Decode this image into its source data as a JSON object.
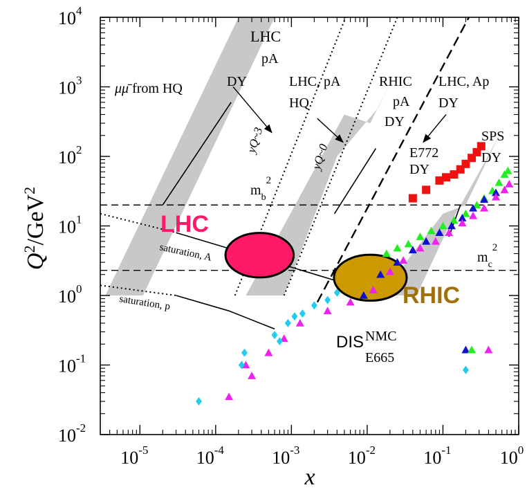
{
  "chart_data": {
    "type": "scatter",
    "title": "",
    "xlabel": "x",
    "ylabel_main": "Q",
    "ylabel_sup": "2",
    "ylabel_unit": "/GeV",
    "ylabel_unit_sup": "2",
    "x_scale": "log",
    "y_scale": "log",
    "xlim": [
      3e-06,
      1
    ],
    "ylim": [
      0.01,
      10000
    ],
    "grid": false,
    "x_ticks": [
      {
        "base": "10",
        "exp": "-5",
        "value": 1e-05
      },
      {
        "base": "10",
        "exp": "-4",
        "value": 0.0001
      },
      {
        "base": "10",
        "exp": "-3",
        "value": 0.001
      },
      {
        "base": "10",
        "exp": "-2",
        "value": 0.01
      },
      {
        "base": "10",
        "exp": "-1",
        "value": 0.1
      },
      {
        "base": "10",
        "exp": "0",
        "value": 1
      }
    ],
    "y_ticks": [
      {
        "base": "10",
        "exp": "-2",
        "value": 0.01
      },
      {
        "base": "10",
        "exp": "-1",
        "value": 0.1
      },
      {
        "base": "10",
        "exp": "0",
        "value": 1
      },
      {
        "base": "10",
        "exp": "1",
        "value": 10
      },
      {
        "base": "10",
        "exp": "2",
        "value": 100
      },
      {
        "base": "10",
        "exp": "3",
        "value": 1000
      },
      {
        "base": "10",
        "exp": "4",
        "value": 10000
      }
    ],
    "bands": [
      {
        "corners": [
          [
            3.5e-06,
            1
          ],
          [
            1.1e-05,
            1
          ],
          [
            0.0006,
            10000
          ],
          [
            0.0002,
            10000
          ]
        ],
        "color": "#c8c8c8"
      },
      {
        "corners": [
          [
            0.00025,
            1
          ],
          [
            0.0008,
            1
          ],
          [
            0.004,
            100
          ],
          [
            0.014,
            500
          ],
          [
            0.022,
            1400
          ],
          [
            0.011,
            300
          ],
          [
            0.005,
            400
          ]
        ],
        "color": "#c8c8c8"
      },
      {
        "corners": [
          [
            0.015,
            1
          ],
          [
            0.045,
            1
          ],
          [
            0.12,
            10
          ],
          [
            0.35,
            80
          ],
          [
            0.55,
            200
          ],
          [
            0.2,
            20
          ],
          [
            0.1,
            15
          ]
        ],
        "color": "#c8c8c8"
      }
    ],
    "lines": [
      {
        "name": "yq-3",
        "style": "dotted",
        "points": [
          [
            0.00018,
            1
          ],
          [
            0.0052,
            10000
          ]
        ]
      },
      {
        "name": "yq-0",
        "style": "dotted",
        "points": [
          [
            0.0008,
            1
          ],
          [
            0.025,
            10000
          ]
        ]
      },
      {
        "name": "kinematic-limit",
        "style": "dashed",
        "points": [
          [
            0.0022,
            0.8
          ],
          [
            0.22,
            10000
          ]
        ]
      },
      {
        "name": "mb2",
        "style": "dashed",
        "points": [
          [
            3e-06,
            20
          ],
          [
            1,
            20
          ]
        ]
      },
      {
        "name": "mc2",
        "style": "dashed",
        "points": [
          [
            3e-06,
            2.3
          ],
          [
            1,
            2.3
          ]
        ]
      },
      {
        "name": "saturation-A-dotted",
        "style": "dotted",
        "points": [
          [
            3e-06,
            15
          ],
          [
            3e-05,
            8
          ]
        ]
      },
      {
        "name": "saturation-A",
        "style": "solid",
        "points": [
          [
            3e-05,
            8
          ],
          [
            0.0005,
            3.2
          ],
          [
            0.005,
            1.5
          ]
        ]
      },
      {
        "name": "saturation-p-dotted",
        "style": "dotted",
        "points": [
          [
            3e-06,
            1.4
          ],
          [
            3e-05,
            1
          ]
        ]
      },
      {
        "name": "saturation-p",
        "style": "solid",
        "points": [
          [
            3e-05,
            1
          ],
          [
            0.00015,
            0.6
          ],
          [
            0.0006,
            0.33
          ]
        ]
      },
      {
        "name": "muon-pair-hq",
        "style": "solid",
        "points": [
          [
            2e-05,
            20
          ],
          [
            0.00016,
            600
          ]
        ]
      },
      {
        "name": "rhic-dy",
        "style": "solid",
        "points": [
          [
            0.0037,
            15
          ],
          [
            0.013,
            130
          ]
        ]
      },
      {
        "name": "sps-dy",
        "style": "solid",
        "points": [
          [
            0.12,
            7
          ],
          [
            0.17,
            20
          ]
        ]
      }
    ],
    "arrows": [
      {
        "from": [
          0.00017,
          1000
        ],
        "to": [
          0.00055,
          220
        ]
      },
      {
        "from": [
          0.0022,
          350
        ],
        "to": [
          0.0048,
          160
        ]
      },
      {
        "from": [
          0.11,
          400
        ],
        "to": [
          0.055,
          160
        ]
      }
    ],
    "ellipses": [
      {
        "center": [
          0.00038,
          3.8
        ],
        "rx_decades": 0.45,
        "ry_decades": 0.32,
        "color": "#ff1a66"
      },
      {
        "center": [
          0.011,
          1.8
        ],
        "rx_decades": 0.48,
        "ry_decades": 0.33,
        "color": "#cc9900"
      }
    ],
    "series": [
      {
        "name": "E772 DY",
        "marker": "square",
        "color": "#ee1111",
        "points": [
          [
            0.04,
            25
          ],
          [
            0.06,
            33
          ],
          [
            0.09,
            45
          ],
          [
            0.11,
            50
          ],
          [
            0.14,
            55
          ],
          [
            0.17,
            65
          ],
          [
            0.2,
            78
          ],
          [
            0.24,
            95
          ],
          [
            0.28,
            115
          ],
          [
            0.32,
            140
          ]
        ]
      },
      {
        "name": "NMC",
        "marker": "triangle",
        "color": "#22ee22",
        "points": [
          [
            0.018,
            4
          ],
          [
            0.025,
            4.8
          ],
          [
            0.035,
            5.5
          ],
          [
            0.05,
            7
          ],
          [
            0.07,
            8.5
          ],
          [
            0.1,
            10
          ],
          [
            0.14,
            12
          ],
          [
            0.2,
            15
          ],
          [
            0.28,
            20
          ],
          [
            0.35,
            25
          ],
          [
            0.45,
            32
          ],
          [
            0.55,
            42
          ],
          [
            0.65,
            55
          ],
          [
            0.72,
            62
          ]
        ]
      },
      {
        "name": "NMC",
        "marker": "triangle",
        "color": "#1111cc",
        "points": [
          [
            0.009,
            1
          ],
          [
            0.015,
            2
          ],
          [
            0.025,
            3
          ],
          [
            0.04,
            4.5
          ],
          [
            0.06,
            6
          ],
          [
            0.09,
            8
          ],
          [
            0.13,
            10
          ],
          [
            0.18,
            13
          ],
          [
            0.25,
            18
          ],
          [
            0.35,
            24
          ],
          [
            0.5,
            30
          ]
        ]
      },
      {
        "name": "E665 / NMC",
        "marker": "triangle",
        "color": "#ee22ee",
        "points": [
          [
            0.00015,
            0.035
          ],
          [
            0.00025,
            0.1
          ],
          [
            0.0003,
            0.07
          ],
          [
            0.0005,
            0.15
          ],
          [
            0.0008,
            0.24
          ],
          [
            0.0013,
            0.4
          ],
          [
            0.003,
            0.6
          ],
          [
            0.006,
            0.8
          ],
          [
            0.012,
            1.2
          ],
          [
            0.02,
            2.2
          ],
          [
            0.03,
            3.2
          ],
          [
            0.05,
            4.8
          ],
          [
            0.08,
            6
          ],
          [
            0.12,
            8
          ],
          [
            0.18,
            11
          ],
          [
            0.25,
            14
          ],
          [
            0.35,
            18
          ],
          [
            0.5,
            26
          ],
          [
            0.65,
            33
          ],
          [
            0.75,
            40
          ]
        ]
      },
      {
        "name": "E665",
        "marker": "diamond",
        "color": "#22ccee",
        "points": [
          [
            6e-05,
            0.03
          ],
          [
            0.00022,
            0.1
          ],
          [
            0.00024,
            0.15
          ],
          [
            0.0006,
            0.27
          ],
          [
            0.0007,
            0.22
          ],
          [
            0.0009,
            0.4
          ],
          [
            0.0011,
            0.5
          ],
          [
            0.0014,
            0.55
          ],
          [
            0.002,
            0.72
          ],
          [
            0.003,
            0.86
          ],
          [
            0.004,
            1.1
          ]
        ]
      }
    ],
    "legend_markers": [
      {
        "series": 2,
        "point": [
          0.2,
          0.165
        ]
      },
      {
        "series": 1,
        "point": [
          0.24,
          0.165
        ]
      },
      {
        "series": 3,
        "point": [
          0.4,
          0.165
        ]
      },
      {
        "series": 4,
        "point": [
          0.2,
          0.085
        ]
      }
    ],
    "annotations": {
      "lhc_pa_dy_1": "LHC",
      "lhc_pa_dy_2": "pA",
      "lhc_pa_dy_3": "DY",
      "muon_mu": "μμ̄",
      "muon_from": " from HQ",
      "lhc_pa_hq_1": "LHC, pA",
      "lhc_pa_hq_2": "HQ",
      "rhic_pa_dy_1": "RHIC",
      "rhic_pa_dy_2": "pA",
      "rhic_pa_dy_3": "DY",
      "lhc_ap_dy_1": "LHC, Ap",
      "lhc_ap_dy_2": "DY",
      "yq_3": "yQ~3",
      "yq_0": "yQ~0",
      "sps_dy_1": "SPS",
      "sps_dy_2": "DY",
      "e772_dy_1": "E772",
      "e772_dy_2": "DY",
      "mb_base": "m",
      "mb_sub": "b",
      "mb_sup": "2",
      "mc_base": "m",
      "mc_sub": "c",
      "mc_sup": "2",
      "lhc": "LHC",
      "rhic": "RHIC",
      "saturation_a": "saturation, A",
      "saturation_p": "saturation, p",
      "dis": "DIS",
      "nmc": "NMC",
      "e665": "E665"
    }
  }
}
